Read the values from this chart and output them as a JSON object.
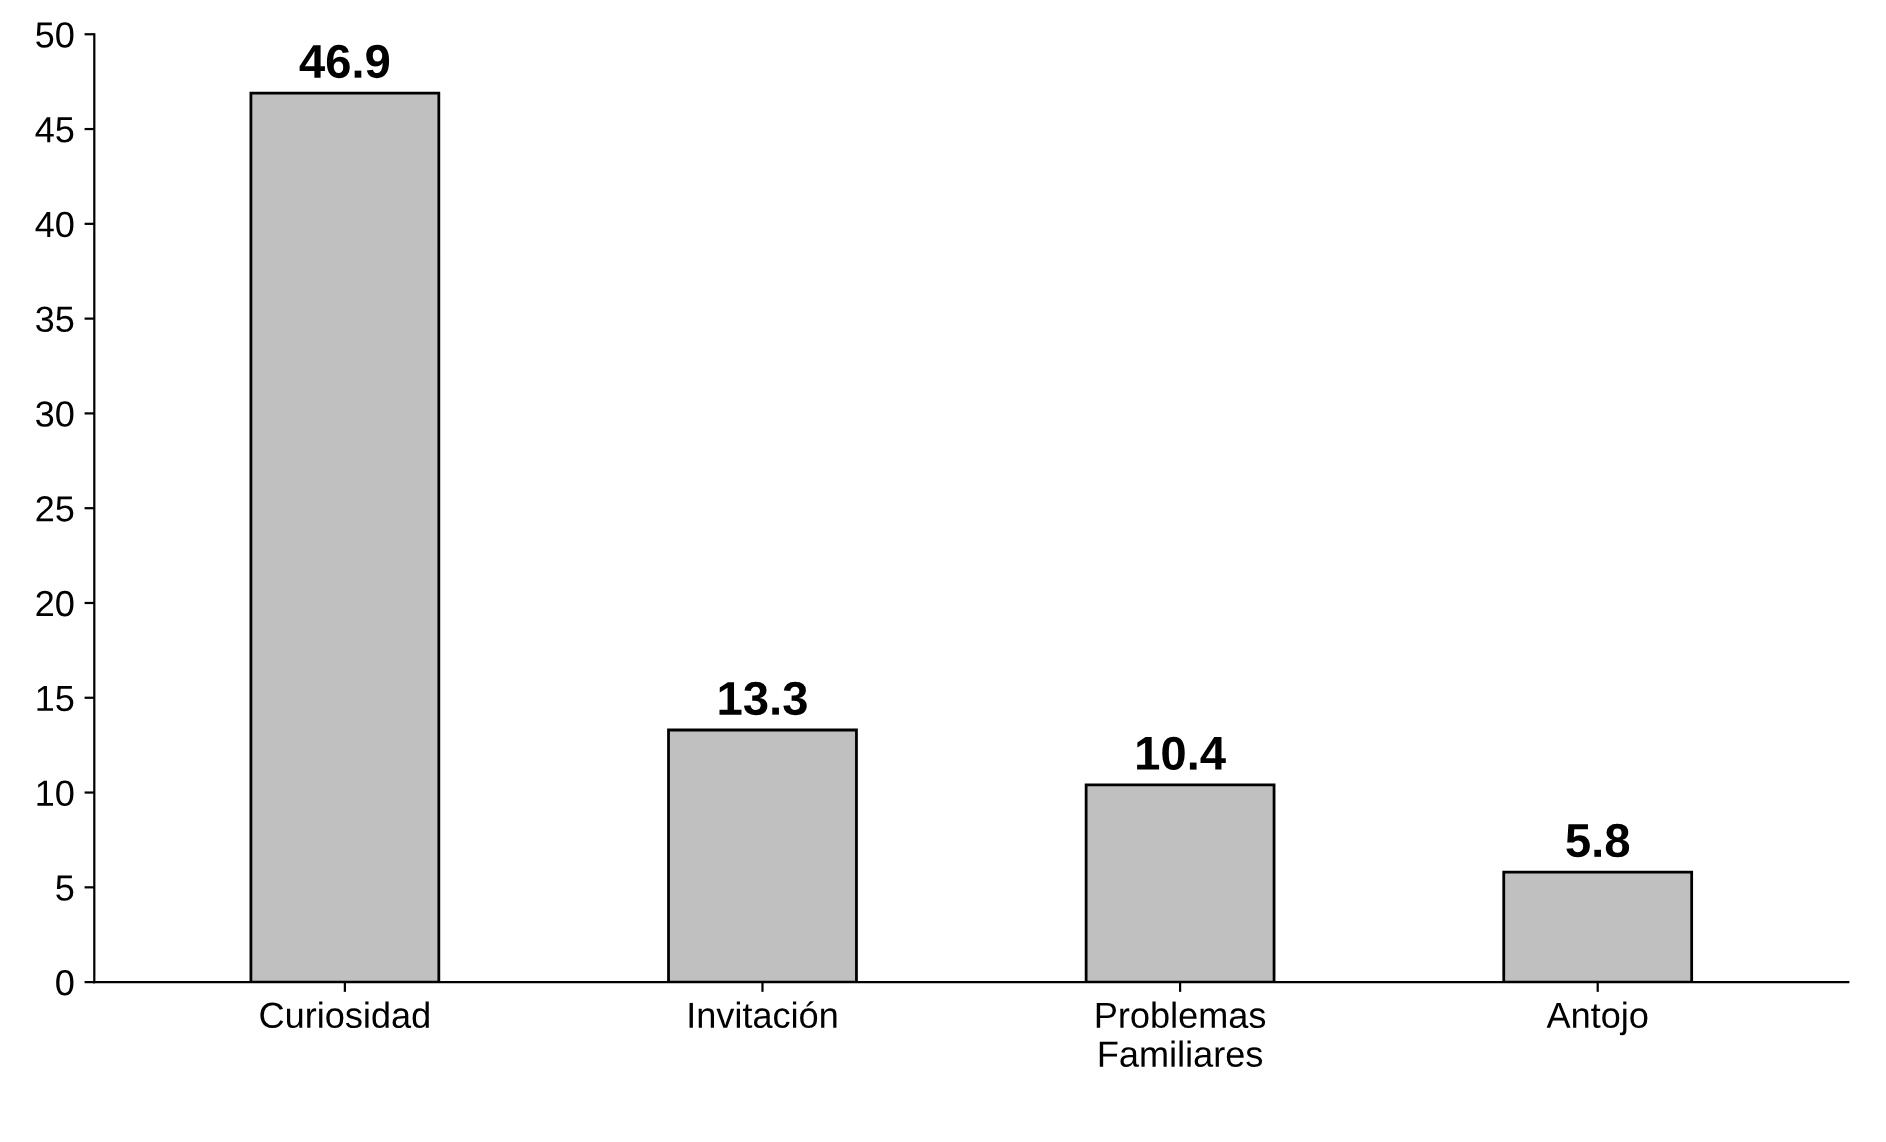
{
  "chart_data": {
    "type": "bar",
    "categories": [
      "Curiosidad",
      "Invitación",
      "Problemas\nFamiliares",
      "Antojo"
    ],
    "values": [
      46.9,
      13.3,
      10.4,
      5.8
    ],
    "color": "#c0c0c0",
    "ylim": [
      0,
      50
    ],
    "yticks": [
      0,
      5,
      10,
      15,
      20,
      25,
      30,
      35,
      40,
      45,
      50
    ],
    "data_labels": true,
    "grid": false,
    "legend": false
  }
}
